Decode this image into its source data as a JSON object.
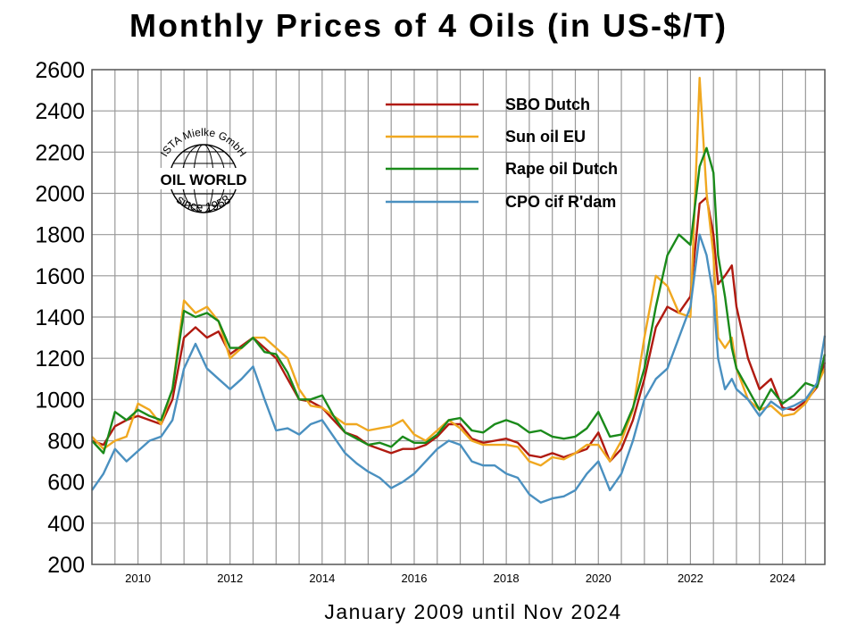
{
  "chart_data": {
    "type": "line",
    "title": "Monthly Prices of 4 Oils (in US-$/T)",
    "xlabel": "January 2009 until Nov 2024",
    "ylabel": "",
    "ylim": [
      200,
      2600
    ],
    "xlim": [
      2009.0,
      2024.92
    ],
    "yticks": [
      200,
      400,
      600,
      800,
      1000,
      1200,
      1400,
      1600,
      1800,
      2000,
      2200,
      2400,
      2600
    ],
    "xticks": [
      2010,
      2012,
      2014,
      2016,
      2018,
      2020,
      2022,
      2024
    ],
    "grid": true,
    "legend_position": "top-center",
    "colors": {
      "SBO Dutch": "#b01a10",
      "Sun oil EU": "#f0a820",
      "Rape oil Dutch": "#1a8a1a",
      "CPO cif R'dam": "#4a90c0"
    },
    "series": [
      {
        "name": "SBO Dutch",
        "color": "#b01a10",
        "points": [
          [
            2009.0,
            800
          ],
          [
            2009.25,
            780
          ],
          [
            2009.5,
            870
          ],
          [
            2009.75,
            900
          ],
          [
            2010.0,
            920
          ],
          [
            2010.25,
            900
          ],
          [
            2010.5,
            880
          ],
          [
            2010.75,
            1000
          ],
          [
            2011.0,
            1300
          ],
          [
            2011.25,
            1350
          ],
          [
            2011.5,
            1300
          ],
          [
            2011.75,
            1330
          ],
          [
            2012.0,
            1220
          ],
          [
            2012.25,
            1260
          ],
          [
            2012.5,
            1300
          ],
          [
            2012.75,
            1250
          ],
          [
            2013.0,
            1200
          ],
          [
            2013.25,
            1100
          ],
          [
            2013.5,
            1000
          ],
          [
            2013.75,
            990
          ],
          [
            2014.0,
            960
          ],
          [
            2014.25,
            900
          ],
          [
            2014.5,
            840
          ],
          [
            2014.75,
            820
          ],
          [
            2015.0,
            780
          ],
          [
            2015.25,
            760
          ],
          [
            2015.5,
            740
          ],
          [
            2015.75,
            760
          ],
          [
            2016.0,
            760
          ],
          [
            2016.25,
            780
          ],
          [
            2016.5,
            820
          ],
          [
            2016.75,
            880
          ],
          [
            2017.0,
            880
          ],
          [
            2017.25,
            810
          ],
          [
            2017.5,
            790
          ],
          [
            2017.75,
            800
          ],
          [
            2018.0,
            810
          ],
          [
            2018.25,
            790
          ],
          [
            2018.5,
            730
          ],
          [
            2018.75,
            720
          ],
          [
            2019.0,
            740
          ],
          [
            2019.25,
            720
          ],
          [
            2019.5,
            740
          ],
          [
            2019.75,
            760
          ],
          [
            2020.0,
            840
          ],
          [
            2020.25,
            700
          ],
          [
            2020.5,
            760
          ],
          [
            2020.75,
            900
          ],
          [
            2021.0,
            1100
          ],
          [
            2021.25,
            1350
          ],
          [
            2021.5,
            1450
          ],
          [
            2021.75,
            1420
          ],
          [
            2022.0,
            1500
          ],
          [
            2022.2,
            1950
          ],
          [
            2022.35,
            1980
          ],
          [
            2022.5,
            1800
          ],
          [
            2022.6,
            1560
          ],
          [
            2022.75,
            1600
          ],
          [
            2022.9,
            1650
          ],
          [
            2023.0,
            1450
          ],
          [
            2023.25,
            1200
          ],
          [
            2023.5,
            1050
          ],
          [
            2023.75,
            1100
          ],
          [
            2024.0,
            960
          ],
          [
            2024.25,
            950
          ],
          [
            2024.5,
            990
          ],
          [
            2024.75,
            1060
          ],
          [
            2024.92,
            1180
          ]
        ]
      },
      {
        "name": "Sun oil EU",
        "color": "#f0a820",
        "points": [
          [
            2009.0,
            820
          ],
          [
            2009.25,
            760
          ],
          [
            2009.5,
            800
          ],
          [
            2009.75,
            820
          ],
          [
            2010.0,
            980
          ],
          [
            2010.25,
            950
          ],
          [
            2010.5,
            880
          ],
          [
            2010.75,
            1050
          ],
          [
            2011.0,
            1480
          ],
          [
            2011.25,
            1420
          ],
          [
            2011.5,
            1450
          ],
          [
            2011.75,
            1380
          ],
          [
            2012.0,
            1200
          ],
          [
            2012.25,
            1250
          ],
          [
            2012.5,
            1300
          ],
          [
            2012.75,
            1300
          ],
          [
            2013.0,
            1250
          ],
          [
            2013.25,
            1200
          ],
          [
            2013.5,
            1050
          ],
          [
            2013.75,
            970
          ],
          [
            2014.0,
            960
          ],
          [
            2014.25,
            920
          ],
          [
            2014.5,
            880
          ],
          [
            2014.75,
            880
          ],
          [
            2015.0,
            850
          ],
          [
            2015.25,
            860
          ],
          [
            2015.5,
            870
          ],
          [
            2015.75,
            900
          ],
          [
            2016.0,
            830
          ],
          [
            2016.25,
            800
          ],
          [
            2016.5,
            850
          ],
          [
            2016.75,
            900
          ],
          [
            2017.0,
            860
          ],
          [
            2017.25,
            800
          ],
          [
            2017.5,
            780
          ],
          [
            2017.75,
            780
          ],
          [
            2018.0,
            780
          ],
          [
            2018.25,
            770
          ],
          [
            2018.5,
            700
          ],
          [
            2018.75,
            680
          ],
          [
            2019.0,
            720
          ],
          [
            2019.25,
            710
          ],
          [
            2019.5,
            740
          ],
          [
            2019.75,
            780
          ],
          [
            2020.0,
            780
          ],
          [
            2020.25,
            700
          ],
          [
            2020.5,
            800
          ],
          [
            2020.75,
            950
          ],
          [
            2021.0,
            1300
          ],
          [
            2021.25,
            1600
          ],
          [
            2021.5,
            1550
          ],
          [
            2021.75,
            1420
          ],
          [
            2022.0,
            1400
          ],
          [
            2022.2,
            2560
          ],
          [
            2022.35,
            2000
          ],
          [
            2022.5,
            1700
          ],
          [
            2022.6,
            1300
          ],
          [
            2022.75,
            1250
          ],
          [
            2022.9,
            1300
          ],
          [
            2023.0,
            1150
          ],
          [
            2023.25,
            1000
          ],
          [
            2023.5,
            950
          ],
          [
            2023.75,
            970
          ],
          [
            2024.0,
            920
          ],
          [
            2024.25,
            930
          ],
          [
            2024.5,
            980
          ],
          [
            2024.75,
            1070
          ],
          [
            2024.92,
            1150
          ]
        ]
      },
      {
        "name": "Rape oil Dutch",
        "color": "#1a8a1a",
        "points": [
          [
            2009.0,
            800
          ],
          [
            2009.25,
            740
          ],
          [
            2009.5,
            940
          ],
          [
            2009.75,
            900
          ],
          [
            2010.0,
            950
          ],
          [
            2010.25,
            920
          ],
          [
            2010.5,
            900
          ],
          [
            2010.75,
            1050
          ],
          [
            2011.0,
            1430
          ],
          [
            2011.25,
            1400
          ],
          [
            2011.5,
            1420
          ],
          [
            2011.75,
            1380
          ],
          [
            2012.0,
            1250
          ],
          [
            2012.25,
            1250
          ],
          [
            2012.5,
            1300
          ],
          [
            2012.75,
            1230
          ],
          [
            2013.0,
            1220
          ],
          [
            2013.25,
            1130
          ],
          [
            2013.5,
            1000
          ],
          [
            2013.75,
            1000
          ],
          [
            2014.0,
            1020
          ],
          [
            2014.25,
            920
          ],
          [
            2014.5,
            840
          ],
          [
            2014.75,
            810
          ],
          [
            2015.0,
            780
          ],
          [
            2015.25,
            790
          ],
          [
            2015.5,
            770
          ],
          [
            2015.75,
            820
          ],
          [
            2016.0,
            790
          ],
          [
            2016.25,
            790
          ],
          [
            2016.5,
            830
          ],
          [
            2016.75,
            900
          ],
          [
            2017.0,
            910
          ],
          [
            2017.25,
            850
          ],
          [
            2017.5,
            840
          ],
          [
            2017.75,
            880
          ],
          [
            2018.0,
            900
          ],
          [
            2018.25,
            880
          ],
          [
            2018.5,
            840
          ],
          [
            2018.75,
            850
          ],
          [
            2019.0,
            820
          ],
          [
            2019.25,
            810
          ],
          [
            2019.5,
            820
          ],
          [
            2019.75,
            860
          ],
          [
            2020.0,
            940
          ],
          [
            2020.25,
            820
          ],
          [
            2020.5,
            830
          ],
          [
            2020.75,
            960
          ],
          [
            2021.0,
            1150
          ],
          [
            2021.25,
            1450
          ],
          [
            2021.5,
            1700
          ],
          [
            2021.75,
            1800
          ],
          [
            2022.0,
            1750
          ],
          [
            2022.2,
            2130
          ],
          [
            2022.35,
            2220
          ],
          [
            2022.5,
            2100
          ],
          [
            2022.6,
            1700
          ],
          [
            2022.75,
            1500
          ],
          [
            2022.9,
            1250
          ],
          [
            2023.0,
            1150
          ],
          [
            2023.25,
            1050
          ],
          [
            2023.5,
            950
          ],
          [
            2023.75,
            1050
          ],
          [
            2024.0,
            980
          ],
          [
            2024.25,
            1020
          ],
          [
            2024.5,
            1080
          ],
          [
            2024.75,
            1060
          ],
          [
            2024.92,
            1220
          ]
        ]
      },
      {
        "name": "CPO cif R'dam",
        "color": "#4a90c0",
        "points": [
          [
            2009.0,
            560
          ],
          [
            2009.25,
            640
          ],
          [
            2009.5,
            760
          ],
          [
            2009.75,
            700
          ],
          [
            2010.0,
            750
          ],
          [
            2010.25,
            800
          ],
          [
            2010.5,
            820
          ],
          [
            2010.75,
            900
          ],
          [
            2011.0,
            1150
          ],
          [
            2011.25,
            1270
          ],
          [
            2011.5,
            1150
          ],
          [
            2011.75,
            1100
          ],
          [
            2012.0,
            1050
          ],
          [
            2012.25,
            1100
          ],
          [
            2012.5,
            1160
          ],
          [
            2012.75,
            1000
          ],
          [
            2013.0,
            850
          ],
          [
            2013.25,
            860
          ],
          [
            2013.5,
            830
          ],
          [
            2013.75,
            880
          ],
          [
            2014.0,
            900
          ],
          [
            2014.25,
            820
          ],
          [
            2014.5,
            740
          ],
          [
            2014.75,
            690
          ],
          [
            2015.0,
            650
          ],
          [
            2015.25,
            620
          ],
          [
            2015.5,
            570
          ],
          [
            2015.75,
            600
          ],
          [
            2016.0,
            640
          ],
          [
            2016.25,
            700
          ],
          [
            2016.5,
            760
          ],
          [
            2016.75,
            800
          ],
          [
            2017.0,
            780
          ],
          [
            2017.25,
            700
          ],
          [
            2017.5,
            680
          ],
          [
            2017.75,
            680
          ],
          [
            2018.0,
            640
          ],
          [
            2018.25,
            620
          ],
          [
            2018.5,
            540
          ],
          [
            2018.75,
            500
          ],
          [
            2019.0,
            520
          ],
          [
            2019.25,
            530
          ],
          [
            2019.5,
            560
          ],
          [
            2019.75,
            640
          ],
          [
            2020.0,
            700
          ],
          [
            2020.25,
            560
          ],
          [
            2020.5,
            640
          ],
          [
            2020.75,
            800
          ],
          [
            2021.0,
            1000
          ],
          [
            2021.25,
            1100
          ],
          [
            2021.5,
            1150
          ],
          [
            2021.75,
            1300
          ],
          [
            2022.0,
            1450
          ],
          [
            2022.2,
            1800
          ],
          [
            2022.35,
            1700
          ],
          [
            2022.5,
            1500
          ],
          [
            2022.6,
            1200
          ],
          [
            2022.75,
            1050
          ],
          [
            2022.9,
            1100
          ],
          [
            2023.0,
            1050
          ],
          [
            2023.25,
            1000
          ],
          [
            2023.5,
            920
          ],
          [
            2023.75,
            990
          ],
          [
            2024.0,
            950
          ],
          [
            2024.25,
            970
          ],
          [
            2024.5,
            1000
          ],
          [
            2024.75,
            1080
          ],
          [
            2024.92,
            1310
          ]
        ]
      }
    ]
  },
  "logo": {
    "arc_text": "ISTA Mielke GmbH",
    "main_text": "OIL WORLD",
    "bottom_text": "since 1958"
  }
}
